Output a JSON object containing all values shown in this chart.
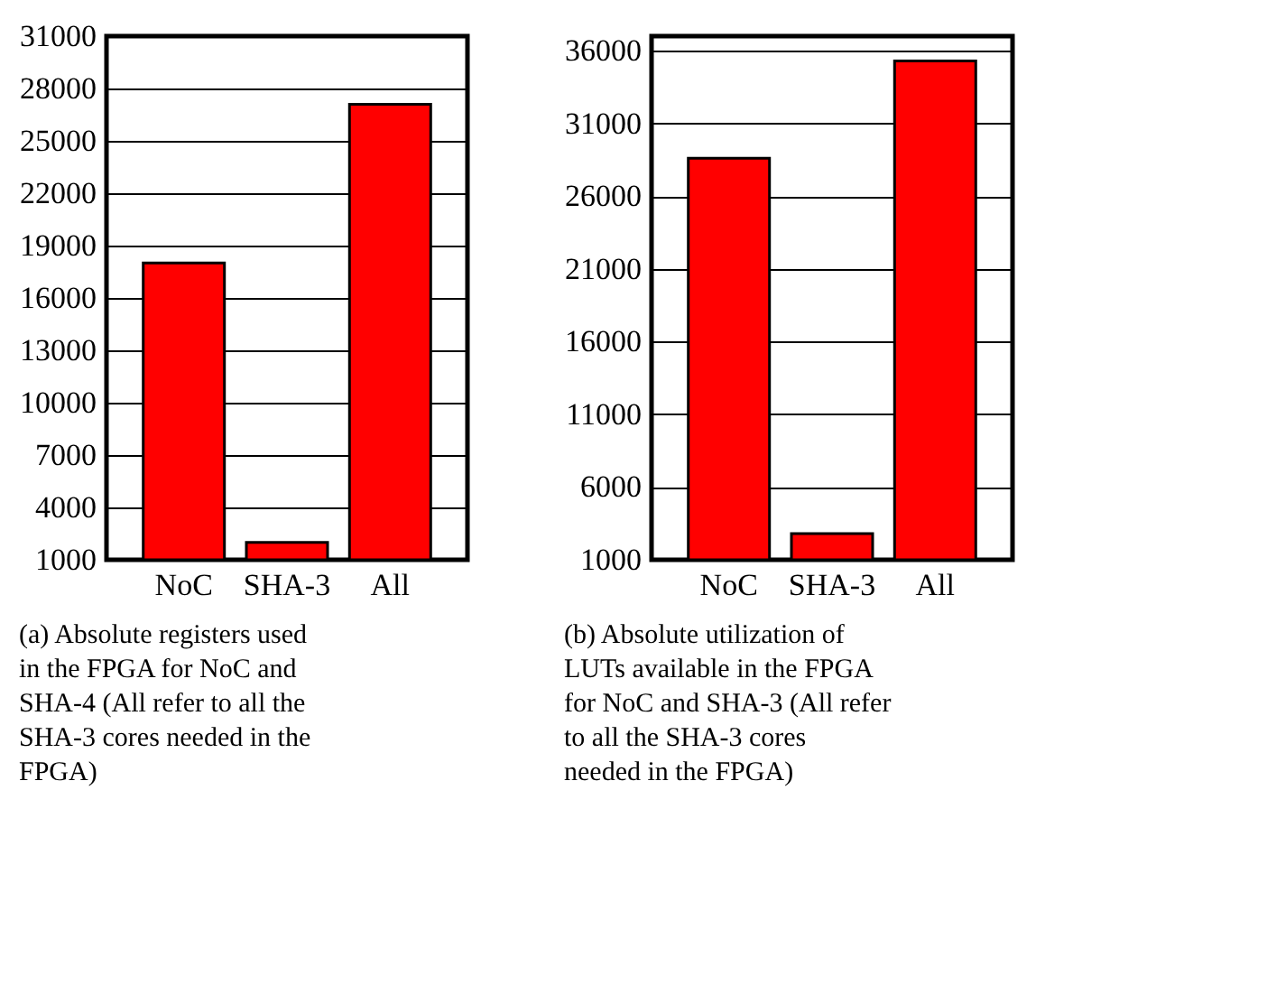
{
  "chart_data": [
    {
      "type": "bar",
      "title": "(a) Absolute registers used in the FPGA for NoC and SHA-4 (All refer to all the SHA-3 cores needed in the FPGA)",
      "categories": [
        "NoC",
        "SHA-3",
        "All"
      ],
      "values": [
        18000,
        2000,
        27100
      ],
      "color": "#ff0000",
      "ylim": [
        1000,
        31000
      ],
      "yticks": [
        1000,
        4000,
        7000,
        10000,
        13000,
        16000,
        19000,
        22000,
        25000,
        28000,
        31000
      ],
      "grid": "y"
    },
    {
      "type": "bar",
      "title": "(b) Absolute utilization of LUTs available in the FPGA for NoC and SHA-3 (All refer to all the SHA-3 cores needed in the FPGA)",
      "categories": [
        "NoC",
        "SHA-3",
        "All"
      ],
      "values": [
        28600,
        2800,
        35300
      ],
      "color": "#ff0000",
      "ylim": [
        1000,
        37000
      ],
      "yticks": [
        1000,
        6000,
        11000,
        16000,
        21000,
        26000,
        31000,
        36000
      ],
      "grid": "y"
    }
  ]
}
